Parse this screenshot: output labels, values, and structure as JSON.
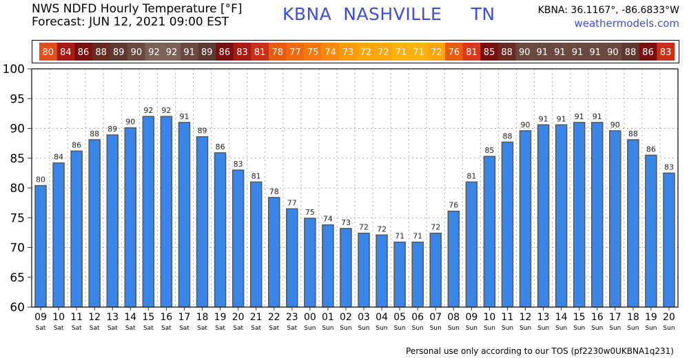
{
  "header": {
    "title_line1": "NWS NDFD Hourly Temperature [°F]",
    "title_line2": "Forecast: JUN 12, 2021 09:00 EST",
    "station": "KBNA  NASHVILLE     TN",
    "coords": "KBNA: 36.1167°, -86.6833°W",
    "site": "weathermodels.com"
  },
  "footer": "Personal use only according to our TOS (pf2230w0UKBNA1q231)",
  "colors": {
    "bar": "#3a86e8",
    "bar_stroke": "#555555",
    "grid": "#aaaaaa",
    "station": "#3a4fe0"
  },
  "chart_data": {
    "type": "bar",
    "categories": [
      "09",
      "10",
      "11",
      "12",
      "13",
      "14",
      "15",
      "16",
      "17",
      "18",
      "19",
      "20",
      "21",
      "22",
      "23",
      "00",
      "01",
      "02",
      "03",
      "04",
      "05",
      "06",
      "07",
      "08",
      "09",
      "10",
      "11",
      "12",
      "13",
      "14",
      "15",
      "16",
      "17",
      "18",
      "19",
      "20"
    ],
    "days": [
      "Sat",
      "Sat",
      "Sat",
      "Sat",
      "Sat",
      "Sat",
      "Sat",
      "Sat",
      "Sat",
      "Sat",
      "Sat",
      "Sat",
      "Sat",
      "Sat",
      "Sat",
      "Sun",
      "Sun",
      "Sun",
      "Sun",
      "Sun",
      "Sun",
      "Sun",
      "Sun",
      "Sun",
      "Sun",
      "Sun",
      "Sun",
      "Sun",
      "Sun",
      "Sun",
      "Sun",
      "Sun",
      "Sun",
      "Sun",
      "Sun",
      "Sun"
    ],
    "values": [
      80.4,
      84.2,
      86.2,
      88.1,
      88.9,
      90.1,
      92.0,
      92.0,
      91.0,
      88.6,
      85.9,
      83.0,
      81.0,
      78.4,
      76.5,
      74.9,
      73.8,
      73.2,
      72.4,
      72.1,
      70.9,
      70.9,
      72.4,
      76.1,
      81.0,
      85.3,
      87.7,
      89.6,
      90.6,
      90.6,
      91.0,
      91.0,
      89.6,
      88.1,
      85.5,
      82.5
    ],
    "labels": [
      "80",
      "84",
      "86",
      "88",
      "89",
      "90",
      "92",
      "92",
      "91",
      "89",
      "86",
      "83",
      "81",
      "78",
      "77",
      "75",
      "74",
      "73",
      "72",
      "72",
      "71",
      "71",
      "72",
      "76",
      "81",
      "85",
      "88",
      "90",
      "91",
      "91",
      "91",
      "91",
      "90",
      "88",
      "86",
      "83"
    ],
    "strip_colors": [
      "#e0501c",
      "#a81a14",
      "#7a0f0f",
      "#6a2a22",
      "#5f3830",
      "#6a4a40",
      "#7a6055",
      "#7a6055",
      "#6a4a40",
      "#5f3830",
      "#7a0f0f",
      "#a81a14",
      "#c8301a",
      "#e85c10",
      "#f26a10",
      "#f6780e",
      "#fa8a0c",
      "#fc9a0c",
      "#fca60c",
      "#fca60c",
      "#fcb10c",
      "#fcb10c",
      "#fca60c",
      "#e85c10",
      "#d83a18",
      "#7a0f0f",
      "#6a2a22",
      "#6a4a40",
      "#6a4a40",
      "#6a4a40",
      "#6a4a40",
      "#6a4a40",
      "#6a4a40",
      "#5f3830",
      "#7a0f0f",
      "#c8301a"
    ],
    "ylim": [
      60,
      100
    ],
    "yticks": [
      60,
      65,
      70,
      75,
      80,
      85,
      90,
      95,
      100
    ],
    "grid": true
  }
}
